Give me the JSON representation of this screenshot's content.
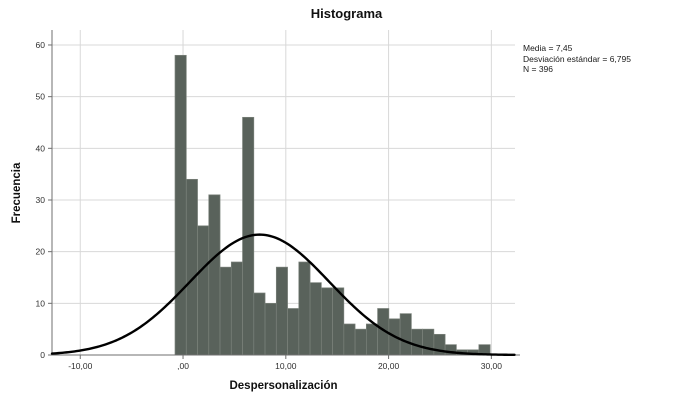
{
  "title": "Histograma",
  "stats_box": {
    "mean": "Media = 7,45",
    "std_dev": "Desviación estándar = 6,795",
    "n": "N = 396"
  },
  "chart_data": {
    "type": "bar",
    "subtype": "histogram",
    "title": "Histograma",
    "xlabel": "Despersonalización",
    "ylabel": "Frecuencia",
    "xlim": [
      -12.75,
      32.3
    ],
    "ylim": [
      0,
      62.9
    ],
    "grid": "on",
    "x_ticks": [
      {
        "value": -10,
        "label": "-10,00"
      },
      {
        "value": 0,
        "label": ",00"
      },
      {
        "value": 10,
        "label": "10,00"
      },
      {
        "value": 20,
        "label": "20,00"
      },
      {
        "value": 30,
        "label": "30,00"
      }
    ],
    "y_ticks": [
      {
        "value": 0,
        "label": "0"
      },
      {
        "value": 10,
        "label": "10"
      },
      {
        "value": 20,
        "label": "20"
      },
      {
        "value": 30,
        "label": "30"
      },
      {
        "value": 40,
        "label": "40"
      },
      {
        "value": 50,
        "label": "50"
      },
      {
        "value": 60,
        "label": "60"
      }
    ],
    "bins": {
      "start": -0.78,
      "width": 1.095,
      "frequencies": [
        58,
        34,
        25,
        31,
        17,
        18,
        46,
        12,
        10,
        17,
        9,
        18,
        14,
        13,
        13,
        6,
        5,
        6,
        9,
        7,
        8,
        5,
        5,
        4,
        2,
        1,
        1,
        2
      ]
    },
    "normal_curve": {
      "mean": 7.45,
      "sd": 6.795,
      "peak": 23.3
    },
    "n": 396,
    "colors": {
      "bar_fill": "#59625b",
      "bar_border": "#7b827b",
      "grid": "#d8d8d8",
      "axis": "#6f6f6f",
      "curve": "#000000",
      "tick_text": "#2f2f2f"
    }
  }
}
